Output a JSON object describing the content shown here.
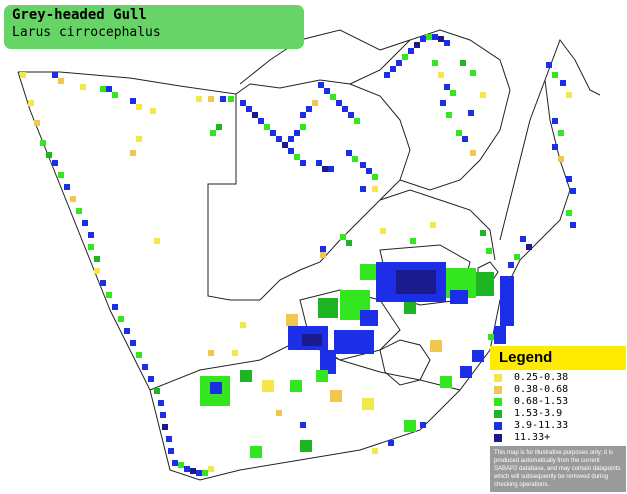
{
  "title": {
    "common_name": "Grey-headed Gull",
    "scientific_name": "Larus cirrocephalus"
  },
  "legend": {
    "heading": "Legend",
    "items": [
      {
        "label": "0.25-0.38",
        "color": "#f5e64b"
      },
      {
        "label": "0.38-0.68",
        "color": "#f0c850"
      },
      {
        "label": "0.68-1.53",
        "color": "#34e620"
      },
      {
        "label": "1.53-3.9",
        "color": "#1fb423"
      },
      {
        "label": "3.9-11.33",
        "color": "#1c2ee6"
      },
      {
        "label": "11.33+",
        "color": "#1a1a8c"
      }
    ],
    "disclaimer": "This map is for illustrative purposes only; it is produced automatically from the current SABAP2 database, and may contain datapoints which will subsequently be removed during checking operations."
  }
}
